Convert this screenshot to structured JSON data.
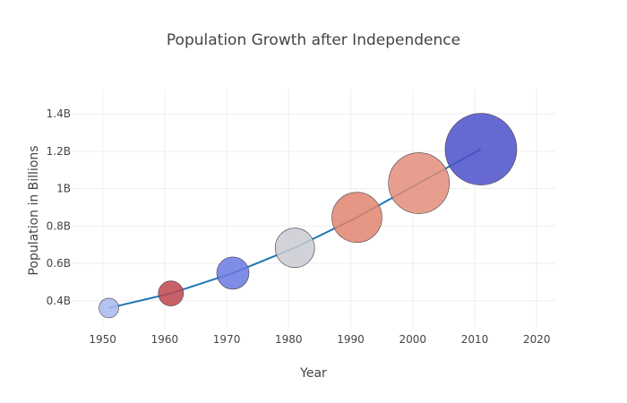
{
  "chart_data": {
    "type": "scatter",
    "title": "Population Growth after Independence",
    "xlabel": "Year",
    "ylabel": "Population in Billions",
    "xlim": [
      1945,
      2023
    ],
    "ylim": [
      0.26,
      1.53
    ],
    "x_ticks": [
      1950,
      1960,
      1970,
      1980,
      1990,
      2000,
      2010,
      2020
    ],
    "y_ticks": [
      0.4,
      0.6,
      0.8,
      1.0,
      1.2,
      1.4
    ],
    "y_tick_labels": [
      "0.4B",
      "0.6B",
      "0.8B",
      "1B",
      "1.2B",
      "1.4B"
    ],
    "grid": true,
    "line_color": "#1f77b4",
    "bubble_line_color": "#444444",
    "points": [
      {
        "x": 1951,
        "y": 0.361,
        "size": 11,
        "color": "#a9b7ee"
      },
      {
        "x": 1961,
        "y": 0.439,
        "size": 14,
        "color": "#c0454f"
      },
      {
        "x": 1971,
        "y": 0.548,
        "size": 18,
        "color": "#6a79e3"
      },
      {
        "x": 1981,
        "y": 0.683,
        "size": 22,
        "color": "#cacbd2"
      },
      {
        "x": 1991,
        "y": 0.846,
        "size": 28,
        "color": "#e0846f"
      },
      {
        "x": 2001,
        "y": 1.029,
        "size": 34,
        "color": "#e48d7a"
      },
      {
        "x": 2011,
        "y": 1.211,
        "size": 40,
        "color": "#4c4fcb"
      }
    ]
  }
}
